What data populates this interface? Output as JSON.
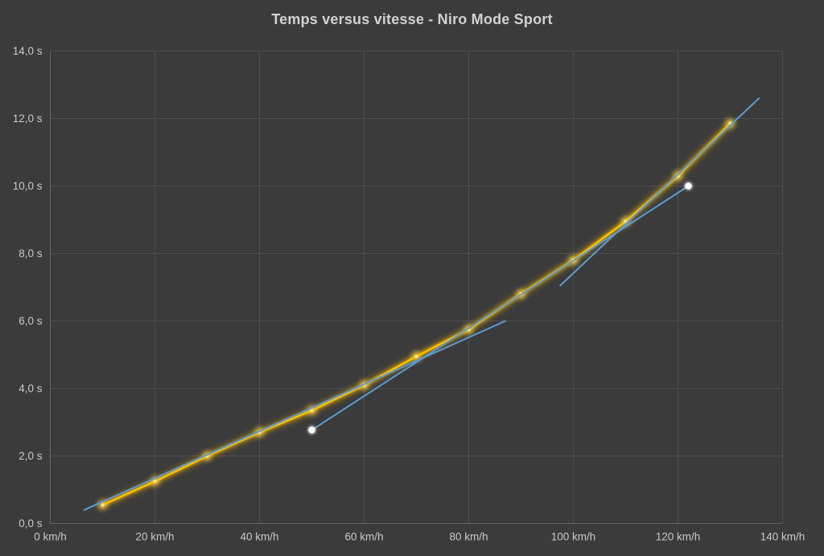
{
  "chart_data": {
    "type": "line",
    "title": "Temps versus vitesse - Niro Mode Sport",
    "xlabel": "",
    "ylabel": "",
    "x_unit": "km/h",
    "y_unit": "s",
    "xlim": [
      0,
      140
    ],
    "ylim": [
      0,
      14
    ],
    "grid": true,
    "legend": "none",
    "x_ticks": {
      "values": [
        0,
        20,
        40,
        60,
        80,
        100,
        120,
        140
      ],
      "labels": [
        "0 km/h",
        "20 km/h",
        "40 km/h",
        "60 km/h",
        "80 km/h",
        "100 km/h",
        "120 km/h",
        "140 km/h"
      ]
    },
    "y_ticks": {
      "values": [
        0,
        2,
        4,
        6,
        8,
        10,
        12,
        14
      ],
      "labels": [
        "0,0 s",
        "2,0 s",
        "4,0 s",
        "6,0 s",
        "8,0 s",
        "10,0 s",
        "12,0 s",
        "14,0 s"
      ]
    },
    "colors": {
      "background": "#3b3b3b",
      "gridline": "#4e4e4e",
      "axis_line": "#646464",
      "tick_label": "#c9c9c9",
      "title": "#d2d2d2",
      "series_main": "#FFC000",
      "series_trend": "#5B9BD5",
      "reference_marker": "#FFFFFF"
    },
    "series": [
      {
        "name": "temps-niro-mode-sport",
        "type": "line",
        "color": "#FFC000",
        "glow": true,
        "markers": true,
        "marker_color": "#FFE38F",
        "x": [
          10,
          20,
          30,
          40,
          50,
          60,
          70,
          80,
          90,
          100,
          110,
          120,
          130
        ],
        "y": [
          0.55,
          1.25,
          2.0,
          2.7,
          3.35,
          4.1,
          4.95,
          5.75,
          6.8,
          7.8,
          8.95,
          10.3,
          11.85
        ]
      },
      {
        "name": "trendline-basse-vitesse",
        "type": "line",
        "color": "#5B9BD5",
        "glow": false,
        "markers": false,
        "x": [
          6.5,
          87
        ],
        "y": [
          0.4,
          6.0
        ]
      },
      {
        "name": "trendline-haute-vitesse",
        "type": "line",
        "color": "#5B9BD5",
        "glow": false,
        "markers": false,
        "x": [
          97.5,
          135.5
        ],
        "y": [
          7.05,
          12.6
        ]
      },
      {
        "name": "segment-reperes-blancs",
        "type": "line",
        "color": "#5B9BD5",
        "glow": false,
        "markers": true,
        "marker_color": "#FFFFFF",
        "x": [
          50,
          122
        ],
        "y": [
          2.77,
          10.0
        ]
      }
    ]
  }
}
